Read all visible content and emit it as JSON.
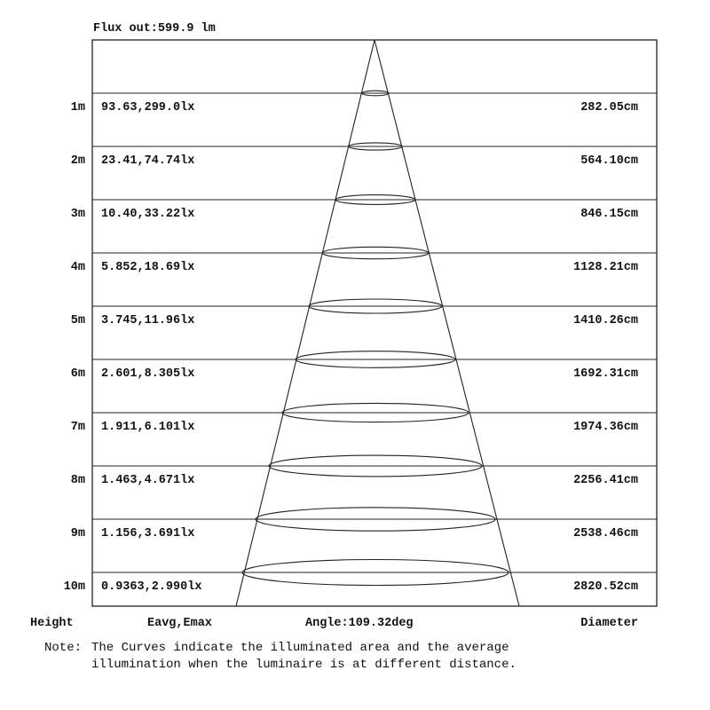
{
  "flux_out": "Flux out:599.9 lm",
  "rows": [
    {
      "height": "1m",
      "eavg_emax": "93.63,299.0lx",
      "diameter": "282.05cm"
    },
    {
      "height": "2m",
      "eavg_emax": "23.41,74.74lx",
      "diameter": "564.10cm"
    },
    {
      "height": "3m",
      "eavg_emax": "10.40,33.22lx",
      "diameter": "846.15cm"
    },
    {
      "height": "4m",
      "eavg_emax": "5.852,18.69lx",
      "diameter": "1128.21cm"
    },
    {
      "height": "5m",
      "eavg_emax": "3.745,11.96lx",
      "diameter": "1410.26cm"
    },
    {
      "height": "6m",
      "eavg_emax": "2.601,8.305lx",
      "diameter": "1692.31cm"
    },
    {
      "height": "7m",
      "eavg_emax": "1.911,6.101lx",
      "diameter": "1974.36cm"
    },
    {
      "height": "8m",
      "eavg_emax": "1.463,4.671lx",
      "diameter": "2256.41cm"
    },
    {
      "height": "9m",
      "eavg_emax": "1.156,3.691lx",
      "diameter": "2538.46cm"
    },
    {
      "height": "10m",
      "eavg_emax": "0.9363,2.990lx",
      "diameter": "2820.52cm"
    }
  ],
  "footer": {
    "height_label": "Height",
    "eavg_label": "Eavg,Emax",
    "angle_label": "Angle:109.32deg",
    "diameter_label": "Diameter"
  },
  "note": {
    "prefix": "Note:",
    "line1": "The Curves indicate the illuminated area and the average",
    "line2": "illumination when the luminaire is at different distance."
  },
  "colors": {
    "line": "#222222",
    "background": "#ffffff"
  }
}
